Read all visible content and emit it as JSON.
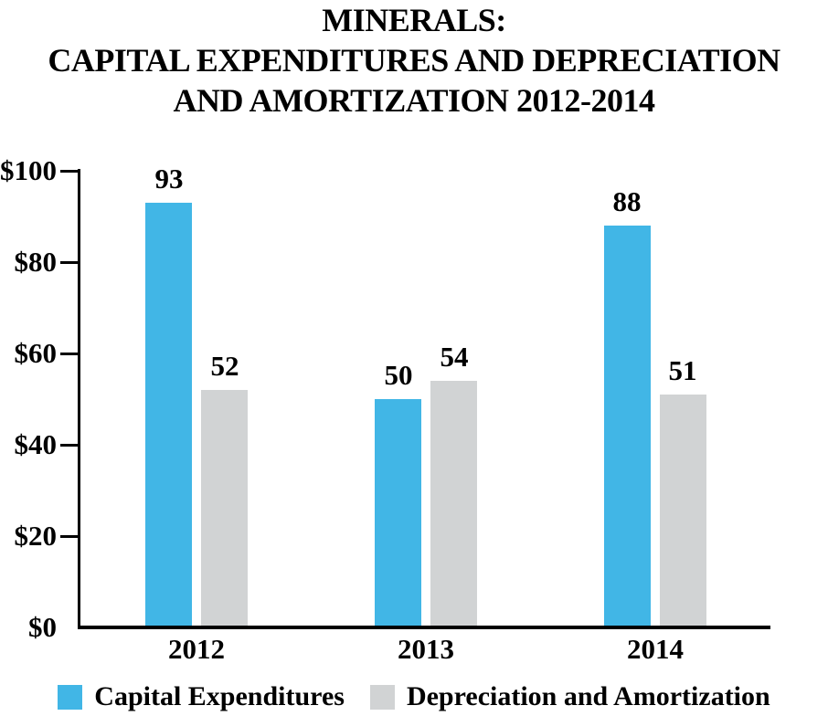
{
  "title": {
    "line1": "MINERALS:",
    "line2": "CAPITAL EXPENDITURES AND DEPRECIATION",
    "line3": "AND AMORTIZATION 2012-2014"
  },
  "colors": {
    "capital_expenditures": "#41B6E6",
    "depreciation_amortization": "#D1D3D4",
    "axis": "#000000"
  },
  "chart_data": {
    "type": "bar",
    "title": "MINERALS: CAPITAL EXPENDITURES AND DEPRECIATION AND AMORTIZATION 2012-2014",
    "categories": [
      "2012",
      "2013",
      "2014"
    ],
    "series": [
      {
        "name": "Capital Expenditures",
        "color": "#41B6E6",
        "values": [
          93,
          50,
          88
        ]
      },
      {
        "name": "Depreciation and Amortization",
        "color": "#D1D3D4",
        "values": [
          52,
          54,
          51
        ]
      }
    ],
    "xlabel": "",
    "ylabel": "",
    "ylim": [
      0,
      100
    ],
    "y_ticks": [
      {
        "label": "$100",
        "value": 100
      },
      {
        "label": "$80",
        "value": 80
      },
      {
        "label": "$60",
        "value": 60
      },
      {
        "label": "$40",
        "value": 40
      },
      {
        "label": "$20",
        "value": 20
      },
      {
        "label": "$0",
        "value": 0
      }
    ],
    "grid": false,
    "data_labels": true,
    "legend_position": "bottom"
  }
}
